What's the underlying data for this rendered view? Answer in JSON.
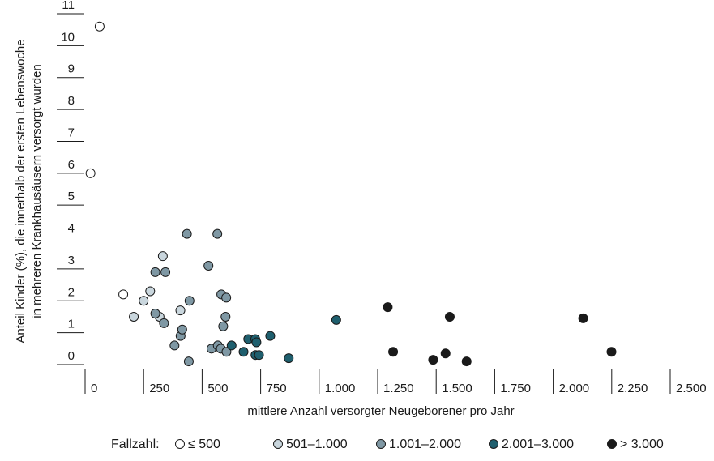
{
  "chart_data": {
    "type": "scatter",
    "title": "",
    "xlabel": "mittlere Anzahl versorgter Neugeborener pro Jahr",
    "ylabel_lines": [
      "Anteil Kinder (%), die innerhalb der ersten Lebenswoche",
      "in mehreren Krankhausäusern versorgt wurden"
    ],
    "xlim": [
      0,
      2500
    ],
    "ylim": [
      0,
      11
    ],
    "x_ticks": [
      {
        "value": 0,
        "label": "0"
      },
      {
        "value": 250,
        "label": "250"
      },
      {
        "value": 500,
        "label": "500"
      },
      {
        "value": 750,
        "label": "750"
      },
      {
        "value": 1000,
        "label": "1.000"
      },
      {
        "value": 1250,
        "label": "1.250"
      },
      {
        "value": 1500,
        "label": "1.500"
      },
      {
        "value": 1750,
        "label": "1.750"
      },
      {
        "value": 2000,
        "label": "2.000"
      },
      {
        "value": 2250,
        "label": "2.250"
      },
      {
        "value": 2500,
        "label": "2.500"
      }
    ],
    "y_ticks": [
      {
        "value": 0,
        "label": "0"
      },
      {
        "value": 1,
        "label": "1"
      },
      {
        "value": 2,
        "label": "2"
      },
      {
        "value": 3,
        "label": "3"
      },
      {
        "value": 4,
        "label": "4"
      },
      {
        "value": 5,
        "label": "5"
      },
      {
        "value": 6,
        "label": "6"
      },
      {
        "value": 7,
        "label": "7"
      },
      {
        "value": 8,
        "label": "8"
      },
      {
        "value": 9,
        "label": "9"
      },
      {
        "value": 10,
        "label": "10"
      },
      {
        "value": 11,
        "label": "11"
      }
    ],
    "grid": false,
    "legend": {
      "position": "bottom",
      "title": "Fallzahl:"
    },
    "series": [
      {
        "name": "≤ 500",
        "color": "#ffffff",
        "points": [
          {
            "x": 62,
            "y": 10.6
          },
          {
            "x": 23,
            "y": 6.0
          },
          {
            "x": 163,
            "y": 2.2
          }
        ]
      },
      {
        "name": "501–1.000",
        "color": "#c9d6dd",
        "points": [
          {
            "x": 208,
            "y": 1.5
          },
          {
            "x": 250,
            "y": 2.0
          },
          {
            "x": 278,
            "y": 2.3
          },
          {
            "x": 332,
            "y": 3.4
          },
          {
            "x": 318,
            "y": 1.5
          },
          {
            "x": 407,
            "y": 1.7
          }
        ]
      },
      {
        "name": "1.001–2.000",
        "color": "#7f98a4",
        "points": [
          {
            "x": 300,
            "y": 2.9
          },
          {
            "x": 300,
            "y": 1.6
          },
          {
            "x": 343,
            "y": 2.9
          },
          {
            "x": 337,
            "y": 1.3
          },
          {
            "x": 408,
            "y": 0.9
          },
          {
            "x": 415,
            "y": 1.1
          },
          {
            "x": 382,
            "y": 0.6
          },
          {
            "x": 435,
            "y": 4.1
          },
          {
            "x": 446,
            "y": 2.0
          },
          {
            "x": 443,
            "y": 0.1
          },
          {
            "x": 527,
            "y": 3.1
          },
          {
            "x": 565,
            "y": 4.1
          },
          {
            "x": 540,
            "y": 0.5
          },
          {
            "x": 567,
            "y": 0.6
          },
          {
            "x": 580,
            "y": 0.5
          },
          {
            "x": 582,
            "y": 2.2
          },
          {
            "x": 603,
            "y": 2.1
          },
          {
            "x": 600,
            "y": 1.5
          },
          {
            "x": 590,
            "y": 1.2
          },
          {
            "x": 604,
            "y": 0.4
          }
        ]
      },
      {
        "name": "2.001–3.000",
        "color": "#1f5f6e",
        "points": [
          {
            "x": 626,
            "y": 0.6
          },
          {
            "x": 677,
            "y": 0.4
          },
          {
            "x": 697,
            "y": 0.8
          },
          {
            "x": 727,
            "y": 0.8
          },
          {
            "x": 732,
            "y": 0.7
          },
          {
            "x": 728,
            "y": 0.3
          },
          {
            "x": 743,
            "y": 0.3
          },
          {
            "x": 791,
            "y": 0.9
          },
          {
            "x": 870,
            "y": 0.2
          },
          {
            "x": 1073,
            "y": 1.4
          }
        ]
      },
      {
        "name": "> 3.000",
        "color": "#1a1a1a",
        "points": [
          {
            "x": 1293,
            "y": 1.8
          },
          {
            "x": 1316,
            "y": 0.4
          },
          {
            "x": 1487,
            "y": 0.15
          },
          {
            "x": 1540,
            "y": 0.35
          },
          {
            "x": 1558,
            "y": 1.5
          },
          {
            "x": 1630,
            "y": 0.1
          },
          {
            "x": 2128,
            "y": 1.45
          },
          {
            "x": 2249,
            "y": 0.4
          }
        ]
      }
    ]
  }
}
